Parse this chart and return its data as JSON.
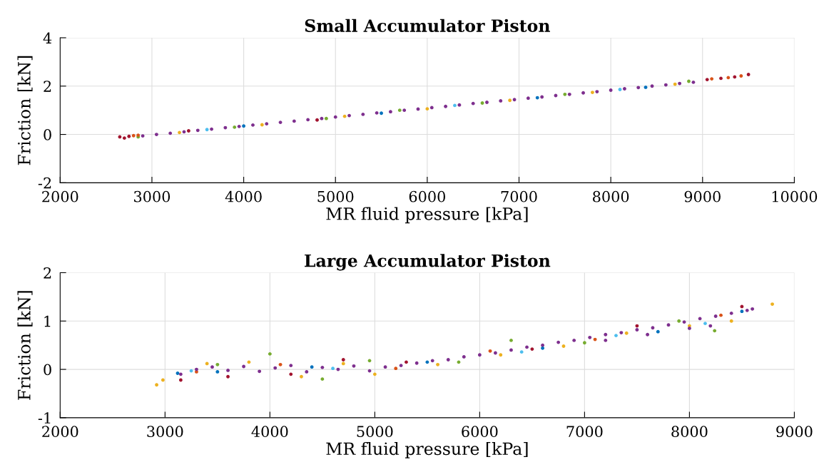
{
  "chart_data": [
    {
      "type": "scatter",
      "title": "Small Accumulator Piston",
      "xlabel": "MR fluid pressure [kPa]",
      "ylabel": "Friction [kN]",
      "xlim": [
        2000,
        10000
      ],
      "xticks": [
        2000,
        3000,
        4000,
        5000,
        6000,
        7000,
        8000,
        9000,
        10000
      ],
      "ylim": [
        -2,
        4
      ],
      "yticks": [
        -2,
        0,
        2,
        4
      ],
      "grid": true,
      "marker": "circle",
      "series": [
        {
          "color": "#edb120",
          "x": [
            3300,
            4200,
            5100,
            6000,
            6900,
            7800,
            8700
          ],
          "values": [
            0.08,
            0.4,
            0.75,
            1.06,
            1.41,
            1.74,
            2.08
          ]
        },
        {
          "color": "#77ac30",
          "x": [
            2850,
            3900,
            4900,
            5700,
            6600,
            7500,
            8850
          ],
          "values": [
            -0.1,
            0.3,
            0.66,
            1.0,
            1.3,
            1.66,
            2.2
          ]
        },
        {
          "color": "#a2142f",
          "x": [
            2650,
            2700,
            2750,
            3400,
            4800,
            9050,
            9200,
            9350,
            9500
          ],
          "values": [
            -0.1,
            -0.15,
            -0.08,
            0.15,
            0.6,
            2.27,
            2.32,
            2.38,
            2.48
          ]
        },
        {
          "color": "#d95319",
          "x": [
            2800,
            2850,
            9100,
            9280,
            9420
          ],
          "values": [
            -0.05,
            -0.03,
            2.3,
            2.35,
            2.42
          ]
        },
        {
          "color": "#0072bd",
          "x": [
            4000,
            5500,
            7200,
            8380
          ],
          "values": [
            0.35,
            0.88,
            1.52,
            1.95
          ]
        },
        {
          "color": "#4dbeee",
          "x": [
            3600,
            6300,
            8100
          ],
          "values": [
            0.2,
            1.2,
            1.86
          ]
        },
        {
          "color": "#7e2f8e",
          "x": [
            2900,
            3050,
            3200,
            3350,
            3500,
            3650,
            3800,
            3950,
            4100,
            4250,
            4400,
            4550,
            4700,
            4850,
            5000,
            5150,
            5300,
            5450,
            5600,
            5750,
            5900,
            6050,
            6200,
            6350,
            6500,
            6650,
            6800,
            6950,
            7100,
            7250,
            7400,
            7550,
            7700,
            7850,
            8000,
            8150,
            8300,
            8450,
            8600,
            8750,
            8900
          ],
          "values": [
            -0.06,
            0.0,
            0.05,
            0.11,
            0.17,
            0.22,
            0.28,
            0.33,
            0.39,
            0.44,
            0.5,
            0.55,
            0.61,
            0.66,
            0.72,
            0.78,
            0.83,
            0.89,
            0.94,
            1.0,
            1.05,
            1.11,
            1.16,
            1.22,
            1.28,
            1.33,
            1.39,
            1.44,
            1.5,
            1.55,
            1.61,
            1.66,
            1.72,
            1.77,
            1.83,
            1.89,
            1.94,
            2.0,
            2.05,
            2.11,
            2.16
          ]
        }
      ]
    },
    {
      "type": "scatter",
      "title": "Large Accumulator Piston",
      "xlabel": "MR fluid pressure [kPa]",
      "ylabel": "Friction [kN]",
      "xlim": [
        2000,
        9000
      ],
      "xticks": [
        2000,
        3000,
        4000,
        5000,
        6000,
        7000,
        8000,
        9000
      ],
      "ylim": [
        -1,
        2
      ],
      "yticks": [
        -1,
        0,
        1,
        2
      ],
      "grid": true,
      "marker": "circle",
      "series": [
        {
          "color": "#edb120",
          "x": [
            2920,
            2980,
            3400,
            3800,
            4300,
            4700,
            5000,
            5600,
            6200,
            6800,
            7400,
            8000,
            8400,
            8790
          ],
          "values": [
            -0.32,
            -0.22,
            0.12,
            0.15,
            -0.15,
            0.12,
            -0.1,
            0.1,
            0.3,
            0.48,
            0.75,
            0.9,
            1.0,
            1.35
          ]
        },
        {
          "color": "#77ac30",
          "x": [
            3500,
            4000,
            4500,
            4950,
            5800,
            6300,
            7000,
            7900,
            8240
          ],
          "values": [
            0.1,
            0.32,
            -0.2,
            0.18,
            0.15,
            0.6,
            0.55,
            1.0,
            0.8
          ]
        },
        {
          "color": "#a2142f",
          "x": [
            3150,
            3600,
            4200,
            4700,
            5300,
            6500,
            7500,
            8500
          ],
          "values": [
            -0.22,
            -0.15,
            -0.1,
            0.2,
            0.15,
            0.42,
            0.9,
            1.3
          ]
        },
        {
          "color": "#0072bd",
          "x": [
            3120,
            3500,
            4400,
            5500,
            6600,
            7700,
            8500
          ],
          "values": [
            -0.08,
            -0.05,
            0.05,
            0.15,
            0.44,
            0.78,
            1.2
          ]
        },
        {
          "color": "#d95319",
          "x": [
            3300,
            4100,
            5200,
            6100,
            7100,
            8300
          ],
          "values": [
            -0.05,
            0.1,
            0.02,
            0.38,
            0.62,
            1.12
          ]
        },
        {
          "color": "#4dbeee",
          "x": [
            3250,
            4600,
            6400,
            7300,
            8150
          ],
          "values": [
            -0.03,
            0.02,
            0.36,
            0.7,
            0.95
          ]
        },
        {
          "color": "#7e2f8e",
          "x": [
            3150,
            3300,
            3450,
            3600,
            3750,
            3900,
            4050,
            4200,
            4350,
            4500,
            4650,
            4800,
            4950,
            5100,
            5250,
            5400,
            5550,
            5700,
            5850,
            6000,
            6150,
            6300,
            6450,
            6600,
            6750,
            6900,
            7050,
            7200,
            7350,
            7500,
            7650,
            7800,
            7950,
            8100,
            8250,
            8400,
            8550,
            8600,
            7200,
            7600,
            8000,
            8200
          ],
          "values": [
            -0.1,
            0.0,
            0.05,
            -0.02,
            0.06,
            -0.04,
            0.03,
            0.08,
            -0.05,
            0.04,
            0.0,
            0.07,
            -0.03,
            0.05,
            0.08,
            0.13,
            0.18,
            0.2,
            0.26,
            0.3,
            0.34,
            0.4,
            0.46,
            0.5,
            0.56,
            0.6,
            0.66,
            0.72,
            0.76,
            0.82,
            0.86,
            0.92,
            0.98,
            1.05,
            1.1,
            1.16,
            1.22,
            1.25,
            0.6,
            0.72,
            0.85,
            0.9
          ]
        }
      ]
    }
  ]
}
